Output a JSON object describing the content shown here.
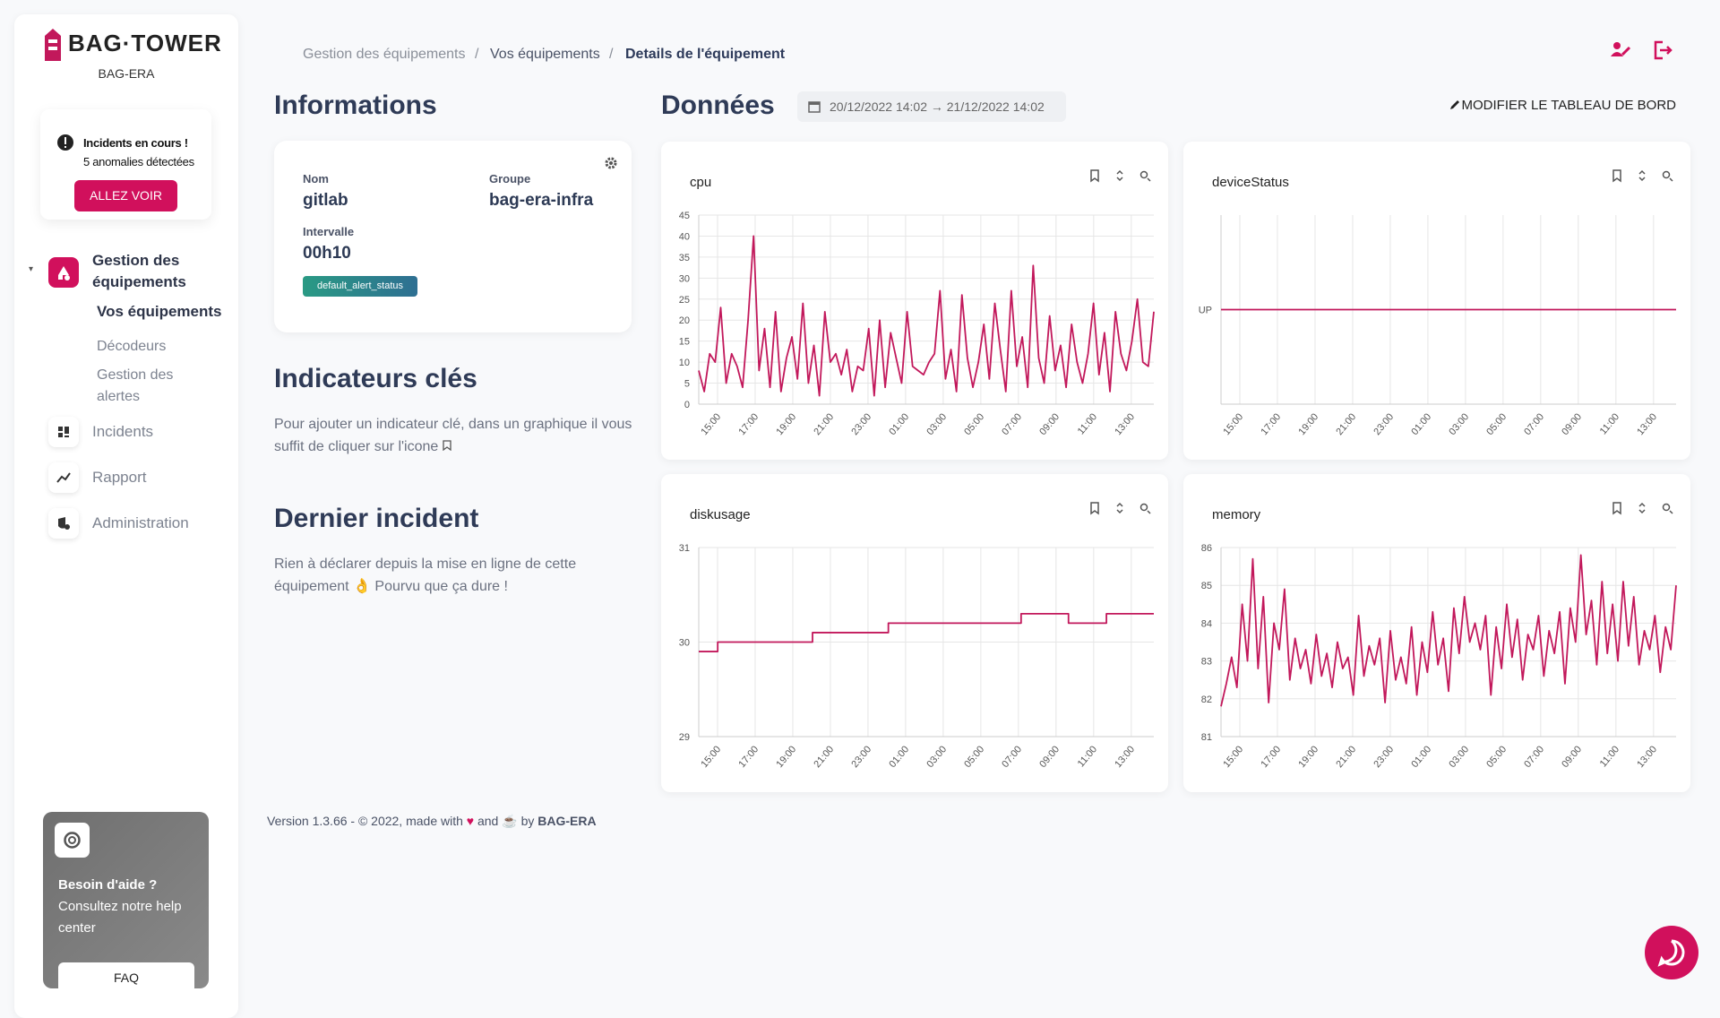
{
  "sidebar": {
    "logo": "BAG·TOWER",
    "org": "BAG-ERA",
    "alert": {
      "title": "Incidents en cours !",
      "text": "5 anomalies détectées",
      "button": "ALLEZ VOIR"
    },
    "nav": {
      "group": [
        "Gestion des",
        "équipements"
      ],
      "active": "Vos équipements",
      "sub": [
        "Décodeurs",
        "Gestion des",
        "alertes"
      ],
      "items": [
        "Incidents",
        "Rapport",
        "Administration"
      ]
    },
    "help": {
      "title": "Besoin d'aide ?",
      "lines": [
        "Consultez notre help",
        "center"
      ],
      "button": "FAQ"
    }
  },
  "breadcrumb": [
    "Gestion des équipements",
    "/",
    "Vos équipements",
    "/",
    "Details de l'équipement"
  ],
  "info": {
    "heading": "Informations",
    "fields": [
      {
        "label": "Nom",
        "value": "gitlab"
      },
      {
        "label": "Groupe",
        "value": "bag-era-infra"
      },
      {
        "label": "Intervalle",
        "value": "00h10"
      }
    ],
    "badge": "default_alert_status"
  },
  "indicators": {
    "heading": "Indicateurs clés",
    "text": "Pour ajouter un indicateur clé, dans un graphique il vous suffit de cliquer sur l'icone"
  },
  "incident": {
    "heading": "Dernier incident",
    "text": "Rien à déclarer depuis la mise en ligne de cette équipement 👌 Pourvu que ça dure !"
  },
  "data_section": {
    "heading": "Données",
    "range": "20/12/2022 14:02 → 21/12/2022 14:02",
    "edit": "MODIFIER LE TABLEAU DE BORD"
  },
  "footer": {
    "text": "Version 1.3.66 - © 2022, made with",
    "and": "and",
    "by": "by",
    "org": "BAG-ERA"
  },
  "charts": [
    {
      "type": "line",
      "title": "cpu",
      "color": "#c2185b",
      "grid": true,
      "ylim": [
        0,
        45
      ],
      "yticks": [
        0,
        5,
        10,
        15,
        20,
        25,
        30,
        35,
        40,
        45
      ],
      "xlim": [
        14,
        38.2
      ],
      "xticks": [
        {
          "value": 15,
          "label": "15:00"
        },
        {
          "value": 17,
          "label": "17:00"
        },
        {
          "value": 19,
          "label": "19:00"
        },
        {
          "value": 21,
          "label": "21:00"
        },
        {
          "value": 23,
          "label": "23:00"
        },
        {
          "value": 25,
          "label": "01:00"
        },
        {
          "value": 27,
          "label": "03:00"
        },
        {
          "value": 29,
          "label": "05:00"
        },
        {
          "value": 31,
          "label": "07:00"
        },
        {
          "value": 33,
          "label": "09:00"
        },
        {
          "value": 35,
          "label": "11:00"
        },
        {
          "value": 37,
          "label": "13:00"
        }
      ],
      "values": [
        8,
        3,
        12,
        10,
        23,
        5,
        12,
        9,
        4,
        20,
        40,
        8,
        18,
        4,
        22,
        3,
        11,
        16,
        6,
        24,
        5,
        14,
        2,
        22,
        10,
        12,
        7,
        13,
        3,
        9,
        8,
        18,
        2,
        20,
        4,
        17,
        11,
        5,
        22,
        9,
        8,
        7,
        10,
        12,
        27,
        6,
        13,
        3,
        26,
        11,
        4,
        10,
        19,
        6,
        24,
        13,
        3,
        27,
        9,
        16,
        4,
        33,
        11,
        5,
        21,
        8,
        14,
        4,
        19,
        10,
        5,
        12,
        24,
        7,
        17,
        3,
        22,
        12,
        8,
        15,
        25,
        10,
        9,
        22
      ]
    },
    {
      "type": "line",
      "title": "deviceStatus",
      "color": "#c2185b",
      "grid": true,
      "vgrid_only": true,
      "ylim": [
        0,
        2
      ],
      "yticks": [
        {
          "value": 1,
          "label": "UP"
        }
      ],
      "xlim": [
        14,
        38.2
      ],
      "xticks": [
        {
          "value": 15,
          "label": "15:00"
        },
        {
          "value": 17,
          "label": "17:00"
        },
        {
          "value": 19,
          "label": "19:00"
        },
        {
          "value": 21,
          "label": "21:00"
        },
        {
          "value": 23,
          "label": "23:00"
        },
        {
          "value": 25,
          "label": "01:00"
        },
        {
          "value": 27,
          "label": "03:00"
        },
        {
          "value": 29,
          "label": "05:00"
        },
        {
          "value": 31,
          "label": "07:00"
        },
        {
          "value": 33,
          "label": "09:00"
        },
        {
          "value": 35,
          "label": "11:00"
        },
        {
          "value": 37,
          "label": "13:00"
        }
      ],
      "values": [
        1,
        1,
        1,
        1,
        1,
        1,
        1,
        1,
        1,
        1,
        1,
        1,
        1,
        1,
        1,
        1,
        1,
        1,
        1,
        1,
        1,
        1,
        1,
        1
      ]
    },
    {
      "type": "step",
      "title": "diskusage",
      "color": "#c2185b",
      "grid": true,
      "ylim": [
        29,
        31
      ],
      "yticks": [
        29,
        30,
        31
      ],
      "xlim": [
        14,
        38.2
      ],
      "xticks": [
        {
          "value": 15,
          "label": "15:00"
        },
        {
          "value": 17,
          "label": "17:00"
        },
        {
          "value": 19,
          "label": "19:00"
        },
        {
          "value": 21,
          "label": "21:00"
        },
        {
          "value": 23,
          "label": "23:00"
        },
        {
          "value": 25,
          "label": "01:00"
        },
        {
          "value": 27,
          "label": "03:00"
        },
        {
          "value": 29,
          "label": "05:00"
        },
        {
          "value": 31,
          "label": "07:00"
        },
        {
          "value": 33,
          "label": "09:00"
        },
        {
          "value": 35,
          "label": "11:00"
        },
        {
          "value": 37,
          "label": "13:00"
        }
      ],
      "values": [
        29.9,
        29.9,
        30,
        30,
        30,
        30,
        30,
        30,
        30,
        30,
        30,
        30,
        30.1,
        30.1,
        30.1,
        30.1,
        30.1,
        30.1,
        30.1,
        30.1,
        30.2,
        30.2,
        30.2,
        30.2,
        30.2,
        30.2,
        30.2,
        30.2,
        30.2,
        30.2,
        30.2,
        30.2,
        30.2,
        30.2,
        30.3,
        30.3,
        30.3,
        30.3,
        30.3,
        30.2,
        30.2,
        30.2,
        30.2,
        30.3,
        30.3,
        30.3,
        30.3,
        30.3,
        30.3
      ]
    },
    {
      "type": "line",
      "title": "memory",
      "color": "#c2185b",
      "grid": true,
      "ylim": [
        81,
        86
      ],
      "yticks": [
        81,
        82,
        83,
        84,
        85,
        86
      ],
      "xlim": [
        14,
        38.2
      ],
      "xticks": [
        {
          "value": 15,
          "label": "15:00"
        },
        {
          "value": 17,
          "label": "17:00"
        },
        {
          "value": 19,
          "label": "19:00"
        },
        {
          "value": 21,
          "label": "21:00"
        },
        {
          "value": 23,
          "label": "23:00"
        },
        {
          "value": 25,
          "label": "01:00"
        },
        {
          "value": 27,
          "label": "03:00"
        },
        {
          "value": 29,
          "label": "05:00"
        },
        {
          "value": 31,
          "label": "07:00"
        },
        {
          "value": 33,
          "label": "09:00"
        },
        {
          "value": 35,
          "label": "11:00"
        },
        {
          "value": 37,
          "label": "13:00"
        }
      ],
      "values": [
        81.8,
        82.4,
        83.1,
        82.3,
        84.5,
        83,
        85.7,
        82.8,
        84.7,
        81.9,
        84,
        83.3,
        84.9,
        82.5,
        83.6,
        82.8,
        83.3,
        82.4,
        83.7,
        82.6,
        83.2,
        82.3,
        83.5,
        82.8,
        83.1,
        82.1,
        84.2,
        82.6,
        83.4,
        82.9,
        83.6,
        81.9,
        83.8,
        82.5,
        83.1,
        82.4,
        83.9,
        82.1,
        83.5,
        82.7,
        84.3,
        82.9,
        83.6,
        82.2,
        84.4,
        83.2,
        84.7,
        83.5,
        84,
        83.3,
        84.2,
        82.1,
        83.9,
        82.8,
        84.5,
        83.1,
        84.1,
        82.5,
        83.7,
        83.3,
        84.2,
        82.6,
        83.8,
        83.2,
        84.3,
        82.4,
        84.4,
        83.5,
        85.8,
        83.7,
        84.6,
        82.9,
        85.1,
        83.2,
        84.5,
        83,
        85.1,
        83.4,
        84.7,
        82.9,
        83.8,
        83.3,
        84.2,
        82.7,
        83.9,
        83.3,
        85
      ]
    }
  ]
}
